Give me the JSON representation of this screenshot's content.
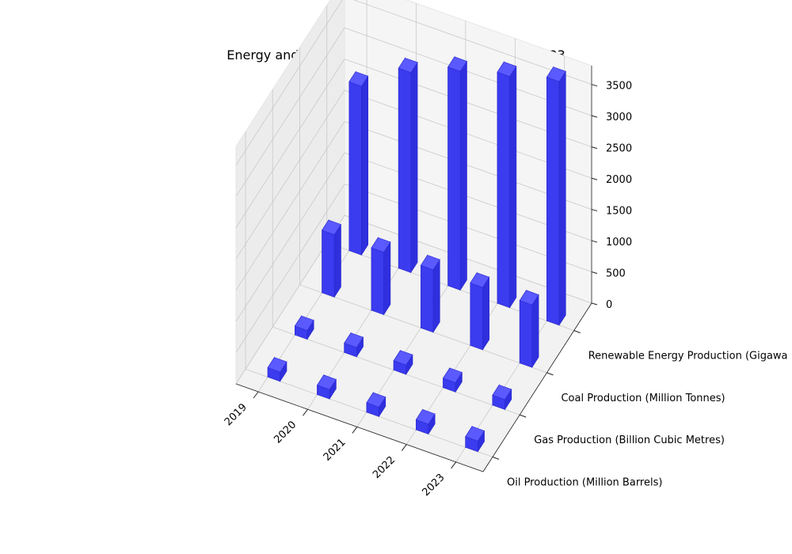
{
  "chart_data": {
    "type": "bar3d",
    "title": "Energy and Utilities Production Trends - 2019 to 2023",
    "x_categories": [
      "2019",
      "2020",
      "2021",
      "2022",
      "2023"
    ],
    "y_categories": [
      "Oil Production (Million Barrels)",
      "Gas Production (Billion Cubic Metres)",
      "Coal Production (Million Tonnes)",
      "Renewable Energy Production (Gigawa"
    ],
    "z_ticks": [
      "0",
      "500",
      "1000",
      "1500",
      "2000",
      "2500",
      "3000",
      "3500"
    ],
    "zlim": [
      0,
      3800
    ],
    "series": [
      {
        "values": [
          150,
          150,
          150,
          160,
          170
        ]
      },
      {
        "values": [
          140,
          150,
          150,
          150,
          160
        ]
      },
      {
        "values": [
          1000,
          1000,
          1000,
          1000,
          1000
        ]
      },
      {
        "values": [
          2700,
          3200,
          3500,
          3700,
          3900
        ]
      }
    ],
    "bar_color": "#3333ee",
    "grid": true
  }
}
